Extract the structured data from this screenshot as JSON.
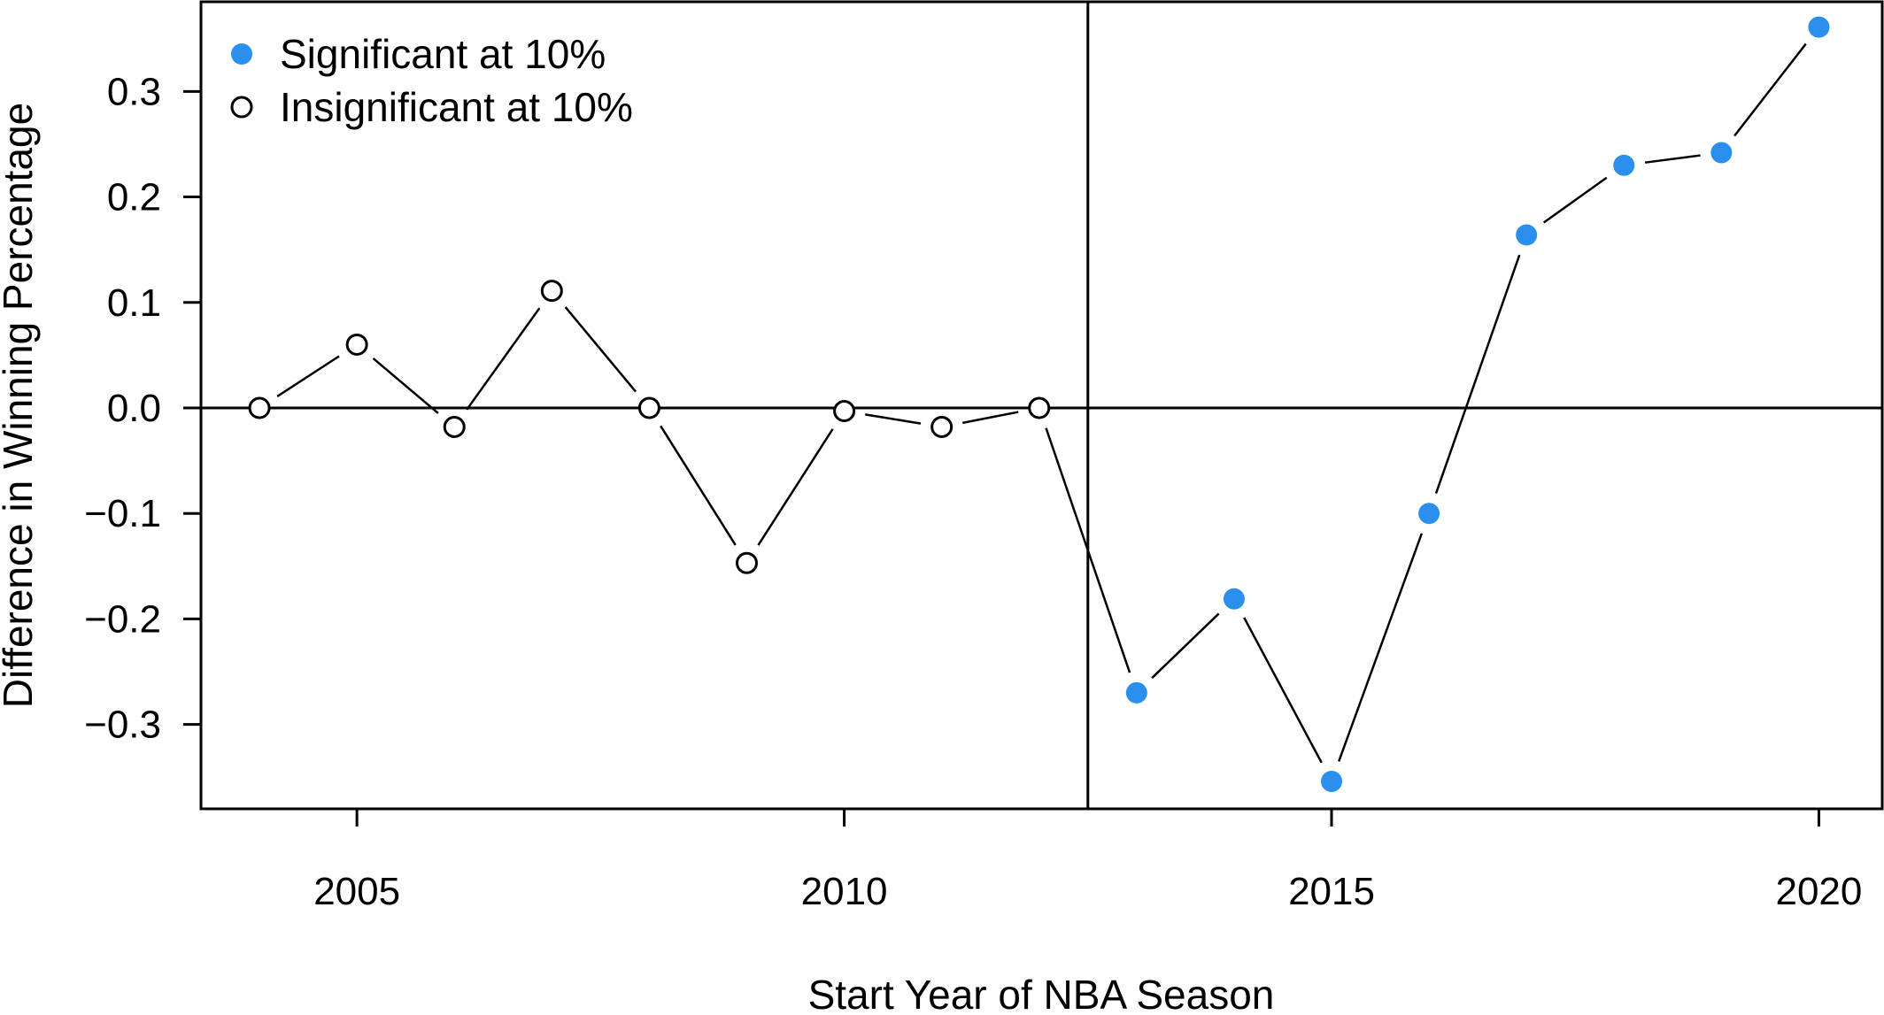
{
  "chart_data": {
    "type": "line",
    "title": "",
    "xlabel": "Start Year of NBA Season",
    "ylabel": "Difference in Winning Percentage",
    "xlim": [
      2003.4,
      2020.65
    ],
    "ylim": [
      -0.38,
      0.385
    ],
    "x_ticks": [
      2005,
      2010,
      2015,
      2020
    ],
    "x_tick_labels": [
      "2005",
      "2010",
      "2015",
      "2020"
    ],
    "y_ticks": [
      -0.3,
      -0.2,
      -0.1,
      0.0,
      0.1,
      0.2,
      0.3
    ],
    "y_tick_labels": [
      "−0.3",
      "−0.2",
      "−0.1",
      "0.0",
      "0.1",
      "0.2",
      "0.3"
    ],
    "reference_lines": {
      "horizontal_y": 0.0,
      "vertical_x": 2012.5
    },
    "grid": false,
    "legend_position": "top-left",
    "colors": {
      "significant": "#2b8fee",
      "insignificant": "#ffffff",
      "line": "#000000"
    },
    "legend": [
      {
        "label": "Significant at 10%",
        "marker": "filled",
        "color": "#2b8fee"
      },
      {
        "label": "Insignificant at 10%",
        "marker": "open",
        "color": "#000000"
      }
    ],
    "series": [
      {
        "points": [
          {
            "x": 2004,
            "y": 0.0,
            "significant": false
          },
          {
            "x": 2005,
            "y": 0.06,
            "significant": false
          },
          {
            "x": 2006,
            "y": -0.018,
            "significant": false
          },
          {
            "x": 2007,
            "y": 0.111,
            "significant": false
          },
          {
            "x": 2008,
            "y": 0.0,
            "significant": false
          },
          {
            "x": 2009,
            "y": -0.147,
            "significant": false
          },
          {
            "x": 2010,
            "y": -0.003,
            "significant": false
          },
          {
            "x": 2011,
            "y": -0.018,
            "significant": false
          },
          {
            "x": 2012,
            "y": 0.0,
            "significant": false
          },
          {
            "x": 2013,
            "y": -0.27,
            "significant": true
          },
          {
            "x": 2014,
            "y": -0.181,
            "significant": true
          },
          {
            "x": 2015,
            "y": -0.354,
            "significant": true
          },
          {
            "x": 2016,
            "y": -0.1,
            "significant": true
          },
          {
            "x": 2017,
            "y": 0.164,
            "significant": true
          },
          {
            "x": 2018,
            "y": 0.23,
            "significant": true
          },
          {
            "x": 2019,
            "y": 0.242,
            "significant": true
          },
          {
            "x": 2020,
            "y": 0.361,
            "significant": true
          }
        ]
      }
    ]
  }
}
